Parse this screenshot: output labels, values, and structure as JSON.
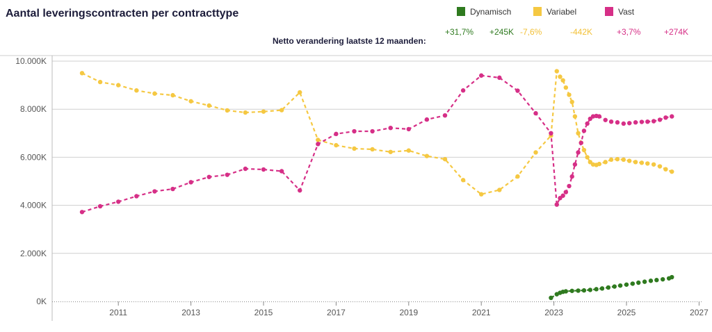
{
  "chart_data": {
    "type": "line",
    "title": "Aantal leveringscontracten per contracttype",
    "subtitle": "Netto verandering laatste 12 maanden:",
    "xlabel": "",
    "ylabel": "",
    "xlim": [
      2009.2,
      2027.1
    ],
    "ylim": [
      0,
      10000
    ],
    "y_ticks": [
      "0K",
      "2.000K",
      "4.000K",
      "6.000K",
      "8.000K",
      "10.000K"
    ],
    "y_tick_values": [
      0,
      2000,
      4000,
      6000,
      8000,
      10000
    ],
    "x_ticks": [
      "2011",
      "2013",
      "2015",
      "2017",
      "2019",
      "2021",
      "2023",
      "2025",
      "2027"
    ],
    "x_tick_values": [
      2011,
      2013,
      2015,
      2017,
      2019,
      2021,
      2023,
      2025,
      2027
    ],
    "grid": true,
    "legend_position": "top-right",
    "series": [
      {
        "name": "Dynamisch",
        "color": "#2f7a1f",
        "change_pct": "+31,7%",
        "change_abs": "+245K",
        "x": [
          2022.92,
          2023.08,
          2023.17,
          2023.25,
          2023.33,
          2023.5,
          2023.67,
          2023.83,
          2024.0,
          2024.17,
          2024.33,
          2024.5,
          2024.67,
          2024.83,
          2025.0,
          2025.17,
          2025.33,
          2025.5,
          2025.67,
          2025.83,
          2026.0,
          2026.17,
          2026.25
        ],
        "values": [
          150,
          300,
          360,
          400,
          420,
          440,
          450,
          460,
          480,
          510,
          540,
          580,
          620,
          660,
          700,
          740,
          780,
          820,
          860,
          890,
          920,
          960,
          1010
        ]
      },
      {
        "name": "Variabel",
        "color": "#f5c842",
        "change_pct": "-7,6%",
        "change_abs": "-442K",
        "x": [
          2010.0,
          2010.5,
          2011.0,
          2011.5,
          2012.0,
          2012.5,
          2013.0,
          2013.5,
          2014.0,
          2014.5,
          2015.0,
          2015.5,
          2016.0,
          2016.5,
          2017.0,
          2017.5,
          2018.0,
          2018.5,
          2019.0,
          2019.5,
          2020.0,
          2020.5,
          2021.0,
          2021.5,
          2022.0,
          2022.5,
          2022.92,
          2023.08,
          2023.17,
          2023.25,
          2023.33,
          2023.42,
          2023.5,
          2023.58,
          2023.67,
          2023.75,
          2023.83,
          2023.92,
          2024.0,
          2024.08,
          2024.17,
          2024.25,
          2024.42,
          2024.58,
          2024.75,
          2024.92,
          2025.08,
          2025.25,
          2025.42,
          2025.58,
          2025.75,
          2025.92,
          2026.08,
          2026.25
        ],
        "values": [
          9500,
          9130,
          9000,
          8780,
          8650,
          8580,
          8330,
          8150,
          7950,
          7860,
          7900,
          7960,
          8700,
          6720,
          6500,
          6360,
          6330,
          6220,
          6280,
          6050,
          5920,
          5050,
          4460,
          4640,
          5200,
          6200,
          6900,
          9580,
          9350,
          9200,
          8900,
          8600,
          8300,
          7700,
          7000,
          6600,
          6300,
          6000,
          5800,
          5700,
          5680,
          5720,
          5800,
          5900,
          5920,
          5900,
          5850,
          5800,
          5770,
          5740,
          5700,
          5620,
          5500,
          5400
        ]
      },
      {
        "name": "Vast",
        "color": "#d62f87",
        "change_pct": "+3,7%",
        "change_abs": "+274K",
        "x": [
          2010.0,
          2010.5,
          2011.0,
          2011.5,
          2012.0,
          2012.5,
          2013.0,
          2013.5,
          2014.0,
          2014.5,
          2015.0,
          2015.5,
          2016.0,
          2016.5,
          2017.0,
          2017.5,
          2018.0,
          2018.5,
          2019.0,
          2019.5,
          2020.0,
          2020.5,
          2021.0,
          2021.5,
          2022.0,
          2022.5,
          2022.92,
          2023.08,
          2023.17,
          2023.25,
          2023.33,
          2023.42,
          2023.5,
          2023.58,
          2023.67,
          2023.75,
          2023.83,
          2023.92,
          2024.0,
          2024.08,
          2024.17,
          2024.25,
          2024.42,
          2024.58,
          2024.75,
          2024.92,
          2025.08,
          2025.25,
          2025.42,
          2025.58,
          2025.75,
          2025.92,
          2026.08,
          2026.25
        ],
        "values": [
          3720,
          3960,
          4150,
          4380,
          4580,
          4680,
          4960,
          5180,
          5270,
          5520,
          5490,
          5420,
          4620,
          6550,
          6970,
          7080,
          7080,
          7220,
          7170,
          7570,
          7740,
          8780,
          9400,
          9310,
          8770,
          7830,
          7000,
          4030,
          4300,
          4400,
          4550,
          4800,
          5200,
          5700,
          6200,
          6600,
          7100,
          7400,
          7600,
          7700,
          7720,
          7700,
          7550,
          7480,
          7450,
          7400,
          7420,
          7450,
          7470,
          7480,
          7500,
          7560,
          7650,
          7700
        ]
      }
    ]
  }
}
